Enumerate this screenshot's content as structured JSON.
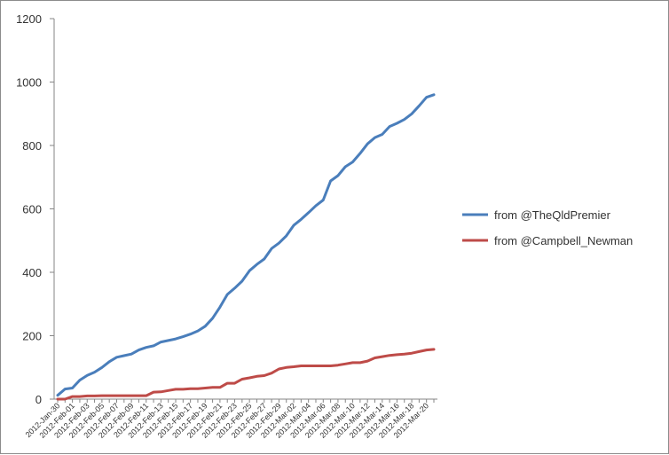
{
  "chart_data": {
    "type": "line",
    "title": "",
    "xlabel": "",
    "ylabel": "",
    "ylim": [
      0,
      1200
    ],
    "y_ticks": [
      "0",
      "200",
      "400",
      "600",
      "800",
      "1000",
      "1200"
    ],
    "grid": false,
    "legend_position": "right",
    "x_tick_labels": [
      "2012-Jan-30",
      "2012-Feb-01",
      "2012-Feb-03",
      "2012-Feb-05",
      "2012-Feb-07",
      "2012-Feb-09",
      "2012-Feb-11",
      "2012-Feb-13",
      "2012-Feb-15",
      "2012-Feb-17",
      "2012-Feb-19",
      "2012-Feb-21",
      "2012-Feb-23",
      "2012-Feb-25",
      "2012-Feb-27",
      "2012-Feb-29",
      "2012-Mar-02",
      "2012-Mar-04",
      "2012-Mar-06",
      "2012-Mar-08",
      "2012-Mar-10",
      "2012-Mar-12",
      "2012-Mar-14",
      "2012-Mar-16",
      "2012-Mar-18",
      "2012-Mar-20"
    ],
    "x": [
      "2012-Jan-30",
      "2012-Jan-31",
      "2012-Feb-01",
      "2012-Feb-02",
      "2012-Feb-03",
      "2012-Feb-04",
      "2012-Feb-05",
      "2012-Feb-06",
      "2012-Feb-07",
      "2012-Feb-08",
      "2012-Feb-09",
      "2012-Feb-10",
      "2012-Feb-11",
      "2012-Feb-12",
      "2012-Feb-13",
      "2012-Feb-14",
      "2012-Feb-15",
      "2012-Feb-16",
      "2012-Feb-17",
      "2012-Feb-18",
      "2012-Feb-19",
      "2012-Feb-20",
      "2012-Feb-21",
      "2012-Feb-22",
      "2012-Feb-23",
      "2012-Feb-24",
      "2012-Feb-25",
      "2012-Feb-26",
      "2012-Feb-27",
      "2012-Feb-28",
      "2012-Feb-29",
      "2012-Mar-01",
      "2012-Mar-02",
      "2012-Mar-03",
      "2012-Mar-04",
      "2012-Mar-05",
      "2012-Mar-06",
      "2012-Mar-07",
      "2012-Mar-08",
      "2012-Mar-09",
      "2012-Mar-10",
      "2012-Mar-11",
      "2012-Mar-12",
      "2012-Mar-13",
      "2012-Mar-14",
      "2012-Mar-15",
      "2012-Mar-16",
      "2012-Mar-17",
      "2012-Mar-18",
      "2012-Mar-19",
      "2012-Mar-20",
      "2012-Mar-21"
    ],
    "series": [
      {
        "name": "from @TheQldPremier",
        "color": "#4a7ebb",
        "values": [
          12,
          32,
          35,
          60,
          75,
          85,
          100,
          118,
          132,
          137,
          142,
          155,
          163,
          168,
          180,
          185,
          190,
          197,
          205,
          215,
          230,
          255,
          290,
          330,
          350,
          372,
          405,
          425,
          442,
          475,
          492,
          515,
          548,
          567,
          588,
          610,
          628,
          688,
          705,
          733,
          748,
          775,
          805,
          825,
          835,
          860,
          870,
          882,
          900,
          925,
          952,
          960
        ]
      },
      {
        "name": "from @Campbell_Newman",
        "color": "#be4b48",
        "values": [
          0,
          0,
          8,
          8,
          10,
          10,
          11,
          11,
          11,
          11,
          11,
          11,
          11,
          22,
          23,
          27,
          31,
          31,
          33,
          33,
          35,
          37,
          37,
          50,
          50,
          63,
          67,
          72,
          74,
          82,
          95,
          100,
          102,
          105,
          105,
          105,
          105,
          105,
          107,
          111,
          115,
          115,
          120,
          130,
          134,
          138,
          140,
          142,
          145,
          150,
          155,
          157
        ]
      }
    ]
  }
}
